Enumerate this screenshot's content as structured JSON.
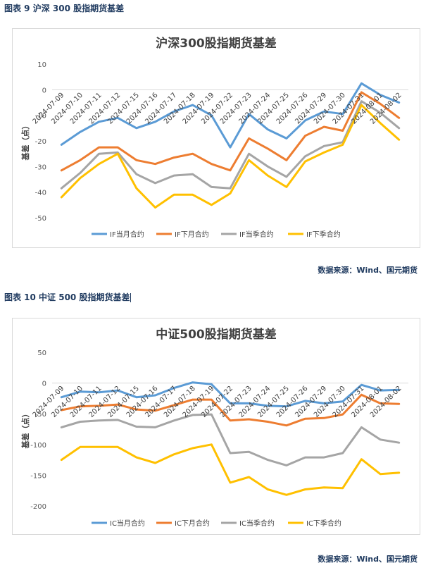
{
  "captions": {
    "chart1": "图表 9   沪深 300 股指期货基差",
    "chart2": "图表 10  中证 500 股指期货基差",
    "source1": "数据来源：Wind、国元期货",
    "source2": "数据来源：Wind、国元期货"
  },
  "colors": {
    "blue": "#5b9bd5",
    "orange": "#ed7d31",
    "gray": "#a5a5a5",
    "yellow": "#ffc000"
  },
  "chart_data": [
    {
      "type": "line",
      "title": "沪深300股指期货基差",
      "ylabel": "基差（点）",
      "xlabel": "",
      "ylim": [
        -50,
        10
      ],
      "yticks": [
        10,
        0,
        -10,
        -20,
        -30,
        -40,
        -50
      ],
      "categories": [
        "2024-07-09",
        "2024-07-10",
        "2024-07-11",
        "2024-07-12",
        "2024-07-15",
        "2024-07-16",
        "2024-07-17",
        "2024-07-18",
        "2024-07-19",
        "2024-07-22",
        "2024-07-23",
        "2024-07-24",
        "2024-07-25",
        "2024-07-26",
        "2024-07-29",
        "2024-07-30",
        "2024-07-31",
        "2024-08-01",
        "2024-08-02"
      ],
      "series": [
        {
          "name": "IF当月合约",
          "color": "#5b9bd5",
          "values": [
            -21.5,
            -16.5,
            -12.5,
            -11,
            -15,
            -12.5,
            -8.5,
            -6,
            -10,
            -22.5,
            -9.5,
            -15.5,
            -19,
            -12,
            -8.5,
            -9.5,
            2.5,
            -2,
            -5
          ]
        },
        {
          "name": "IF下月合约",
          "color": "#ed7d31",
          "values": [
            -31.5,
            -27.5,
            -22.5,
            -22.5,
            -27.5,
            -29,
            -26.5,
            -25,
            -29,
            -31.5,
            -19,
            -23,
            -27.5,
            -18,
            -14.5,
            -16,
            -1,
            -5.5,
            -11
          ]
        },
        {
          "name": "IF当季合约",
          "color": "#a5a5a5",
          "values": [
            -38.5,
            -32.5,
            -25,
            -24.5,
            -33,
            -36.5,
            -33.5,
            -33,
            -38,
            -38.5,
            -25,
            -30,
            -34,
            -26,
            -22,
            -20.5,
            -4.5,
            -9,
            -15
          ]
        },
        {
          "name": "IF下季合约",
          "color": "#ffc000",
          "values": [
            -42,
            -34.5,
            -29,
            -25,
            -38.5,
            -46,
            -41,
            -41,
            -45,
            -40.5,
            -27.5,
            -33.5,
            -38,
            -28,
            -24.5,
            -21.5,
            -6,
            -13,
            -19.5
          ]
        }
      ],
      "legend": "bottom"
    },
    {
      "type": "line",
      "title": "中证500股指期货基差",
      "ylabel": "基差（点）",
      "xlabel": "",
      "ylim": [
        -200,
        50
      ],
      "yticks": [
        50,
        0,
        -50,
        -100,
        -150,
        -200
      ],
      "categories": [
        "2024-07-09",
        "2024-07-10",
        "2024-07-11",
        "2024-07-12",
        "2024-07-15",
        "2024-07-16",
        "2024-07-17",
        "2024-07-18",
        "2024-07-19",
        "2024-07-22",
        "2024-07-23",
        "2024-07-24",
        "2024-07-25",
        "2024-07-26",
        "2024-07-29",
        "2024-07-30",
        "2024-07-31",
        "2024-08-01",
        "2024-08-02"
      ],
      "series": [
        {
          "name": "IC当月合约",
          "color": "#5b9bd5",
          "values": [
            -23,
            -14,
            -15,
            -12,
            -23,
            -20,
            -8,
            1,
            -2,
            -33,
            -33,
            -37,
            -38,
            -29,
            -33,
            -30,
            -3,
            -12,
            -11
          ]
        },
        {
          "name": "IC下月合约",
          "color": "#ed7d31",
          "values": [
            -44,
            -38,
            -37,
            -35,
            -43,
            -45,
            -36,
            -27,
            -27,
            -61,
            -59,
            -63,
            -69,
            -58,
            -57,
            -51,
            -19,
            -33,
            -34
          ]
        },
        {
          "name": "IC当季合约",
          "color": "#a5a5a5",
          "values": [
            -72,
            -63,
            -61,
            -60,
            -71,
            -72,
            -61,
            -52,
            -51,
            -114,
            -112,
            -125,
            -134,
            -121,
            -121,
            -114,
            -72,
            -92,
            -97
          ]
        },
        {
          "name": "IC下季合约",
          "color": "#ffc000",
          "values": [
            -125,
            -104,
            -104,
            -104,
            -121,
            -130,
            -116,
            -106,
            -100,
            -162,
            -153,
            -173,
            -182,
            -173,
            -170,
            -171,
            -124,
            -148,
            -146
          ]
        }
      ],
      "legend": "bottom"
    }
  ]
}
